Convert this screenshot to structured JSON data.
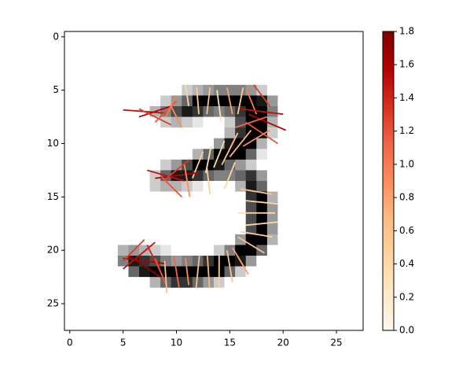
{
  "chart_data": {
    "type": "image_quiver",
    "xlim": [
      -0.5,
      27.5
    ],
    "ylim": [
      27.5,
      -0.5
    ],
    "xticks": [
      0,
      5,
      10,
      15,
      20,
      25
    ],
    "yticks": [
      0,
      5,
      10,
      15,
      20,
      25
    ],
    "image": [
      [
        0,
        0,
        0,
        0,
        0,
        0,
        0,
        0,
        0,
        0,
        0,
        0,
        0,
        0,
        0,
        0,
        0,
        0,
        0,
        0,
        0,
        0,
        0,
        0,
        0,
        0,
        0,
        0
      ],
      [
        0,
        0,
        0,
        0,
        0,
        0,
        0,
        0,
        0,
        0,
        0,
        0,
        0,
        0,
        0,
        0,
        0,
        0,
        0,
        0,
        0,
        0,
        0,
        0,
        0,
        0,
        0,
        0
      ],
      [
        0,
        0,
        0,
        0,
        0,
        0,
        0,
        0,
        0,
        0,
        0,
        0,
        0,
        0,
        0,
        0,
        0,
        0,
        0,
        0,
        0,
        0,
        0,
        0,
        0,
        0,
        0,
        0
      ],
      [
        0,
        0,
        0,
        0,
        0,
        0,
        0,
        0,
        0,
        0,
        0,
        0,
        0,
        0,
        0,
        0,
        0,
        0,
        0,
        0,
        0,
        0,
        0,
        0,
        0,
        0,
        0,
        0
      ],
      [
        0,
        0,
        0,
        0,
        0,
        0,
        0,
        0,
        0,
        0,
        0,
        0,
        0,
        0,
        0,
        0,
        0,
        0,
        0,
        0,
        0,
        0,
        0,
        0,
        0,
        0,
        0,
        0
      ],
      [
        0,
        0,
        0,
        0,
        0,
        0,
        0,
        0,
        0,
        0,
        0,
        0.2,
        0.3,
        0.4,
        0.5,
        0.5,
        0.5,
        0.4,
        0.2,
        0,
        0,
        0,
        0,
        0,
        0,
        0,
        0,
        0
      ],
      [
        0,
        0,
        0,
        0,
        0,
        0,
        0,
        0,
        0,
        0.2,
        0.4,
        0.6,
        1,
        1,
        1,
        1,
        1,
        1,
        0.9,
        0.4,
        0,
        0,
        0,
        0,
        0,
        0,
        0,
        0
      ],
      [
        0,
        0,
        0,
        0,
        0,
        0,
        0,
        0,
        0.3,
        0.5,
        0.7,
        0.9,
        0.8,
        0.6,
        0.5,
        0.6,
        0.8,
        1,
        1,
        0.5,
        0,
        0,
        0,
        0,
        0,
        0,
        0,
        0
      ],
      [
        0,
        0,
        0,
        0,
        0,
        0,
        0,
        0,
        0,
        0.2,
        0.3,
        0.2,
        0.1,
        0,
        0,
        0.2,
        0.7,
        1,
        1,
        0.3,
        0,
        0,
        0,
        0,
        0,
        0,
        0,
        0
      ],
      [
        0,
        0,
        0,
        0,
        0,
        0,
        0,
        0,
        0,
        0,
        0,
        0,
        0,
        0,
        0,
        0.3,
        0.8,
        1,
        1,
        0.2,
        0,
        0,
        0,
        0,
        0,
        0,
        0,
        0
      ],
      [
        0,
        0,
        0,
        0,
        0,
        0,
        0,
        0,
        0,
        0,
        0,
        0,
        0,
        0,
        0.4,
        0.9,
        1,
        1,
        0.3,
        0,
        0,
        0,
        0,
        0,
        0,
        0,
        0,
        0
      ],
      [
        0,
        0,
        0,
        0,
        0,
        0,
        0,
        0,
        0,
        0,
        0,
        0,
        0.3,
        0.6,
        1,
        1,
        1,
        0.6,
        0.1,
        0,
        0,
        0,
        0,
        0,
        0,
        0,
        0,
        0
      ],
      [
        0,
        0,
        0,
        0,
        0,
        0,
        0,
        0,
        0,
        0.2,
        0.4,
        0.7,
        1,
        1,
        0.9,
        0.6,
        0.4,
        0.2,
        0,
        0,
        0,
        0,
        0,
        0,
        0,
        0,
        0,
        0
      ],
      [
        0,
        0,
        0,
        0,
        0,
        0,
        0,
        0,
        0.2,
        0.6,
        0.9,
        0.9,
        0.8,
        0.6,
        0.5,
        0.5,
        0.6,
        0.8,
        0.4,
        0,
        0,
        0,
        0,
        0,
        0,
        0,
        0,
        0
      ],
      [
        0,
        0,
        0,
        0,
        0,
        0,
        0,
        0,
        0.2,
        0.3,
        0.3,
        0.2,
        0.1,
        0,
        0,
        0,
        0.3,
        0.9,
        0.6,
        0,
        0,
        0,
        0,
        0,
        0,
        0,
        0,
        0
      ],
      [
        0,
        0,
        0,
        0,
        0,
        0,
        0,
        0,
        0,
        0,
        0,
        0,
        0,
        0,
        0,
        0,
        0,
        0.8,
        1,
        0.3,
        0,
        0,
        0,
        0,
        0,
        0,
        0,
        0
      ],
      [
        0,
        0,
        0,
        0,
        0,
        0,
        0,
        0,
        0,
        0,
        0,
        0,
        0,
        0,
        0,
        0,
        0,
        0.7,
        1,
        0.4,
        0,
        0,
        0,
        0,
        0,
        0,
        0,
        0
      ],
      [
        0,
        0,
        0,
        0,
        0,
        0,
        0,
        0,
        0,
        0,
        0,
        0,
        0,
        0,
        0,
        0,
        0,
        0.7,
        1,
        0.4,
        0,
        0,
        0,
        0,
        0,
        0,
        0,
        0
      ],
      [
        0,
        0,
        0,
        0,
        0,
        0,
        0,
        0,
        0,
        0,
        0,
        0,
        0,
        0,
        0,
        0,
        0,
        0.7,
        1,
        0.4,
        0,
        0,
        0,
        0,
        0,
        0,
        0,
        0
      ],
      [
        0,
        0,
        0,
        0,
        0,
        0,
        0,
        0,
        0,
        0,
        0,
        0,
        0,
        0,
        0,
        0,
        0.4,
        1,
        1,
        0.3,
        0,
        0,
        0,
        0,
        0,
        0,
        0,
        0
      ],
      [
        0,
        0,
        0,
        0,
        0,
        0.3,
        0.4,
        0.3,
        0.2,
        0.1,
        0,
        0,
        0,
        0,
        0.2,
        0.5,
        1,
        1,
        0.6,
        0,
        0,
        0,
        0,
        0,
        0,
        0,
        0,
        0
      ],
      [
        0,
        0,
        0,
        0,
        0,
        0.5,
        0.9,
        0.8,
        0.7,
        0.5,
        0.4,
        0.5,
        0.6,
        0.8,
        1,
        1,
        0.9,
        0.4,
        0,
        0,
        0,
        0,
        0,
        0,
        0,
        0,
        0,
        0
      ],
      [
        0,
        0,
        0,
        0,
        0,
        0,
        0.6,
        0.9,
        1,
        1,
        1,
        1,
        1,
        1,
        1,
        0.6,
        0.2,
        0,
        0,
        0,
        0,
        0,
        0,
        0,
        0,
        0,
        0,
        0
      ],
      [
        0,
        0,
        0,
        0,
        0,
        0,
        0,
        0,
        0.3,
        0.6,
        0.8,
        0.8,
        0.6,
        0.4,
        0.2,
        0,
        0,
        0,
        0,
        0,
        0,
        0,
        0,
        0,
        0,
        0,
        0,
        0
      ],
      [
        0,
        0,
        0,
        0,
        0,
        0,
        0,
        0,
        0,
        0,
        0,
        0,
        0,
        0,
        0,
        0,
        0,
        0,
        0,
        0,
        0,
        0,
        0,
        0,
        0,
        0,
        0,
        0
      ],
      [
        0,
        0,
        0,
        0,
        0,
        0,
        0,
        0,
        0,
        0,
        0,
        0,
        0,
        0,
        0,
        0,
        0,
        0,
        0,
        0,
        0,
        0,
        0,
        0,
        0,
        0,
        0,
        0
      ],
      [
        0,
        0,
        0,
        0,
        0,
        0,
        0,
        0,
        0,
        0,
        0,
        0,
        0,
        0,
        0,
        0,
        0,
        0,
        0,
        0,
        0,
        0,
        0,
        0,
        0,
        0,
        0,
        0
      ],
      [
        0,
        0,
        0,
        0,
        0,
        0,
        0,
        0,
        0,
        0,
        0,
        0,
        0,
        0,
        0,
        0,
        0,
        0,
        0,
        0,
        0,
        0,
        0,
        0,
        0,
        0,
        0,
        0
      ]
    ],
    "quiver": {
      "x": [
        7,
        8,
        8,
        9,
        9.5,
        10,
        11,
        12,
        13,
        14,
        15,
        16,
        17,
        18,
        18,
        18.5,
        17,
        18,
        17.5,
        16,
        15,
        14,
        13,
        12,
        10,
        9,
        10,
        9.5,
        11,
        13,
        15,
        17.5,
        18,
        17.5,
        18,
        17.5,
        17,
        16,
        15,
        14,
        13,
        12,
        11,
        10,
        7,
        6.5,
        7,
        8,
        6,
        8.5,
        9
      ],
      "y": [
        7,
        7,
        7.5,
        7,
        6.5,
        7.5,
        5.5,
        6,
        6,
        6.5,
        6,
        6,
        6,
        5.5,
        7,
        8,
        8,
        9,
        9.5,
        10,
        10.5,
        11,
        11.5,
        12,
        13,
        13,
        12.5,
        14,
        13.5,
        13.5,
        13,
        14.5,
        15.5,
        16.5,
        17.5,
        18.5,
        19.5,
        21,
        21.5,
        22,
        22,
        22,
        22,
        22,
        21,
        20.5,
        21.5,
        21,
        20,
        22,
        22.5
      ],
      "u": [
        4,
        3,
        3,
        2,
        1,
        1,
        0.3,
        0.2,
        -0.3,
        0.4,
        0.5,
        -0.5,
        1,
        1.5,
        4,
        3.5,
        -3,
        3,
        -2.5,
        2,
        1.5,
        1,
        0.5,
        -1,
        4,
        3.5,
        2.5,
        2,
        0.5,
        0.3,
        -1,
        -3,
        3,
        3.5,
        3,
        3,
        2.5,
        1.5,
        0.5,
        0,
        0.2,
        -0.3,
        0.3,
        0.5,
        4,
        3,
        3,
        1.5,
        2,
        1,
        0.2
      ],
      "v": [
        0.3,
        -1,
        1.5,
        -2,
        -2,
        2,
        2,
        2.5,
        2.5,
        3,
        2.5,
        2.5,
        2.5,
        2,
        0.5,
        1.5,
        1,
        2,
        1.5,
        -2.5,
        -3,
        -2.5,
        -2.5,
        2.5,
        -0.5,
        1,
        -2,
        2,
        3,
        2.5,
        2.5,
        -0.5,
        0.3,
        0,
        -0.3,
        0.5,
        1.5,
        2.5,
        3,
        3,
        3,
        3,
        2.5,
        3,
        0.5,
        -2.5,
        2,
        3,
        -2,
        2.5,
        3
      ],
      "magnitude": [
        1.5,
        1.6,
        1.3,
        1.2,
        1.0,
        0.9,
        0.4,
        0.5,
        0.6,
        0.3,
        0.8,
        0.5,
        1.0,
        1.3,
        1.5,
        1.6,
        1.1,
        1.2,
        0.9,
        0.7,
        0.6,
        0.4,
        0.3,
        0.5,
        1.6,
        1.5,
        1.3,
        1.2,
        0.9,
        0.5,
        0.4,
        0.6,
        0.4,
        0.3,
        0.4,
        0.5,
        0.6,
        0.8,
        0.6,
        0.5,
        0.7,
        0.6,
        0.9,
        1.1,
        1.6,
        1.5,
        1.7,
        1.4,
        1.3,
        1.2,
        0.6
      ]
    },
    "colorbar": {
      "clim": [
        0,
        1.8
      ],
      "colors": [
        "#fff7ec",
        "#fee8c8",
        "#fdd49e",
        "#fdbb84",
        "#fc8d59",
        "#ef6548",
        "#d7301f",
        "#b30000",
        "#7f0000"
      ],
      "ticks": [
        {
          "value": 0,
          "label": "0.0"
        },
        0.2,
        0.4,
        0.6,
        0.8,
        {
          "value": 1,
          "label": "1.0"
        },
        1.2,
        1.4,
        1.6,
        1.8
      ]
    }
  }
}
